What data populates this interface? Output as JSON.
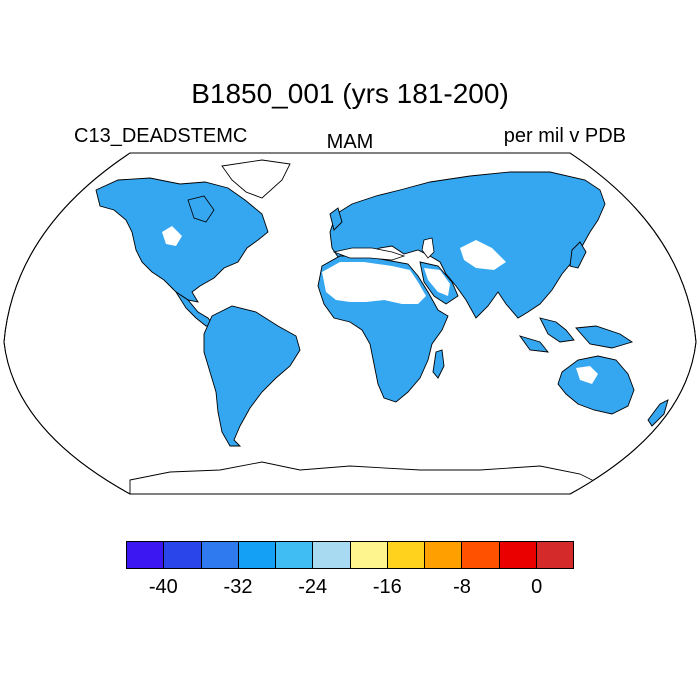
{
  "title": "B1850_001 (yrs 181-200)",
  "left_string": "C13_DEADSTEMC",
  "center_string": "MAM",
  "right_string": "per mil v PDB",
  "map": {
    "projection": "Robinson",
    "field_fill_color": "#35a6f0",
    "field_fill_color_light": "#4fbaf4",
    "missing_color": "#ffffff",
    "coastline_color": "#000000"
  },
  "colorbar": {
    "colors": [
      "#3c17f2",
      "#2a46ea",
      "#2f7aee",
      "#14a0f5",
      "#40bdf3",
      "#a8daf2",
      "#fff58f",
      "#ffd21e",
      "#ffa000",
      "#ff5100",
      "#eb0000",
      "#d42a2a"
    ],
    "labels": [
      "-40",
      "-32",
      "-24",
      "-16",
      "-8",
      "0"
    ]
  }
}
